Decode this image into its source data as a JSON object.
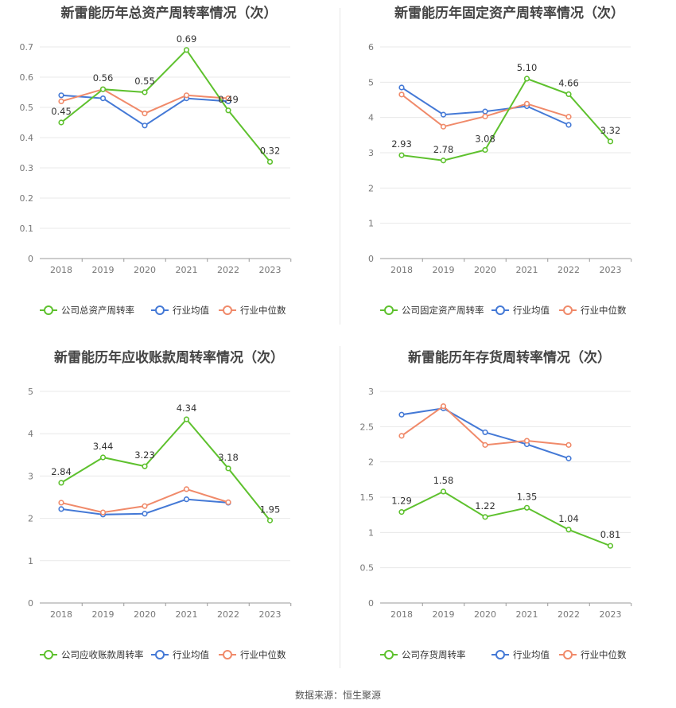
{
  "source": "数据来源：恒生聚源",
  "colors": {
    "company": "#5ec12e",
    "avg": "#4479d6",
    "median": "#f08a6a"
  },
  "chart_data": [
    {
      "type": "line",
      "title": "新雷能历年总资产周转率情况（次）",
      "categories": [
        "2018",
        "2019",
        "2020",
        "2021",
        "2022",
        "2023"
      ],
      "ylim": [
        0,
        0.7
      ],
      "yticks": [
        "0",
        "0.1",
        "0.2",
        "0.3",
        "0.4",
        "0.5",
        "0.6",
        "0.7"
      ],
      "legend_position": "bottom",
      "series": [
        {
          "name": "公司总资产周转率",
          "values": [
            0.45,
            0.56,
            0.55,
            0.69,
            0.49,
            0.32
          ],
          "labels": [
            "0.45",
            "0.56",
            "0.55",
            "0.69",
            "0.49",
            "0.32"
          ]
        },
        {
          "name": "行业均值",
          "values": [
            0.54,
            0.53,
            0.44,
            0.53,
            0.52,
            null
          ]
        },
        {
          "name": "行业中位数",
          "values": [
            0.52,
            0.56,
            0.48,
            0.54,
            0.53,
            null
          ]
        }
      ]
    },
    {
      "type": "line",
      "title": "新雷能历年固定资产周转率情况（次）",
      "categories": [
        "2018",
        "2019",
        "2020",
        "2021",
        "2022",
        "2023"
      ],
      "ylim": [
        0,
        6
      ],
      "yticks": [
        "0",
        "1",
        "2",
        "3",
        "4",
        "5",
        "6"
      ],
      "legend_position": "bottom",
      "series": [
        {
          "name": "公司固定资产周转率",
          "values": [
            2.93,
            2.78,
            3.08,
            5.1,
            4.66,
            3.32
          ],
          "labels": [
            "2.93",
            "2.78",
            "3.08",
            "5.10",
            "4.66",
            "3.32"
          ]
        },
        {
          "name": "行业均值",
          "values": [
            4.85,
            4.08,
            4.17,
            4.32,
            3.79,
            null
          ]
        },
        {
          "name": "行业中位数",
          "values": [
            4.65,
            3.74,
            4.03,
            4.39,
            4.02,
            null
          ]
        }
      ]
    },
    {
      "type": "line",
      "title": "新雷能历年应收账款周转率情况（次）",
      "categories": [
        "2018",
        "2019",
        "2020",
        "2021",
        "2022",
        "2023"
      ],
      "ylim": [
        0,
        5
      ],
      "yticks": [
        "0",
        "1",
        "2",
        "3",
        "4",
        "5"
      ],
      "legend_position": "bottom",
      "series": [
        {
          "name": "公司应收账款周转率",
          "values": [
            2.84,
            3.44,
            3.23,
            4.34,
            3.18,
            1.95
          ],
          "labels": [
            "2.84",
            "3.44",
            "3.23",
            "4.34",
            "3.18",
            "1.95"
          ]
        },
        {
          "name": "行业均值",
          "values": [
            2.22,
            2.09,
            2.11,
            2.45,
            2.37,
            null
          ]
        },
        {
          "name": "行业中位数",
          "values": [
            2.37,
            2.14,
            2.29,
            2.69,
            2.38,
            null
          ]
        }
      ]
    },
    {
      "type": "line",
      "title": "新雷能历年存货周转率情况（次）",
      "categories": [
        "2018",
        "2019",
        "2020",
        "2021",
        "2022",
        "2023"
      ],
      "ylim": [
        0,
        3
      ],
      "yticks": [
        "0",
        "0.5",
        "1",
        "1.5",
        "2",
        "2.5",
        "3"
      ],
      "legend_position": "bottom",
      "series": [
        {
          "name": "公司存货周转率",
          "values": [
            1.29,
            1.58,
            1.22,
            1.35,
            1.04,
            0.81
          ],
          "labels": [
            "1.29",
            "1.58",
            "1.22",
            "1.35",
            "1.04",
            "0.81"
          ]
        },
        {
          "name": "行业均值",
          "values": [
            2.67,
            2.76,
            2.42,
            2.25,
            2.05,
            null
          ]
        },
        {
          "name": "行业中位数",
          "values": [
            2.37,
            2.79,
            2.24,
            2.3,
            2.24,
            null
          ]
        }
      ]
    }
  ]
}
